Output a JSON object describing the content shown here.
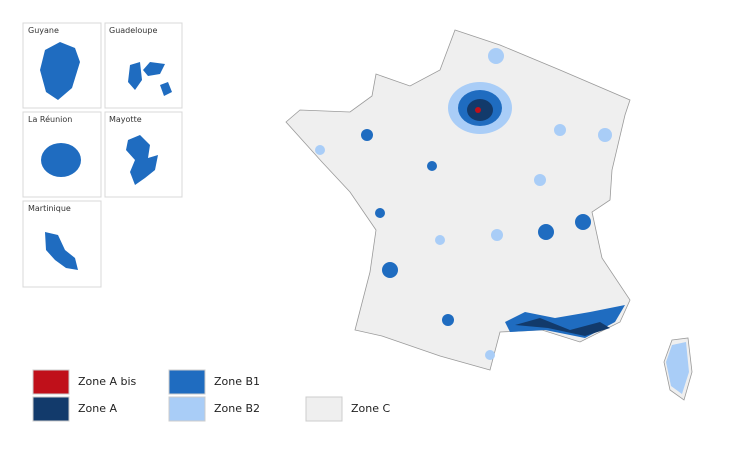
{
  "insets": [
    {
      "label": "Guyane"
    },
    {
      "label": "Guadeloupe"
    },
    {
      "label": "La Réunion"
    },
    {
      "label": "Mayotte"
    },
    {
      "label": "Martinique"
    }
  ],
  "legend": [
    {
      "label": "Zone A bis",
      "color": "#c0101a"
    },
    {
      "label": "Zone A",
      "color": "#123a6b"
    },
    {
      "label": "Zone B1",
      "color": "#1f6cc0"
    },
    {
      "label": "Zone B2",
      "color": "#a9cdf7"
    },
    {
      "label": "Zone C",
      "color": "#efefef"
    }
  ]
}
